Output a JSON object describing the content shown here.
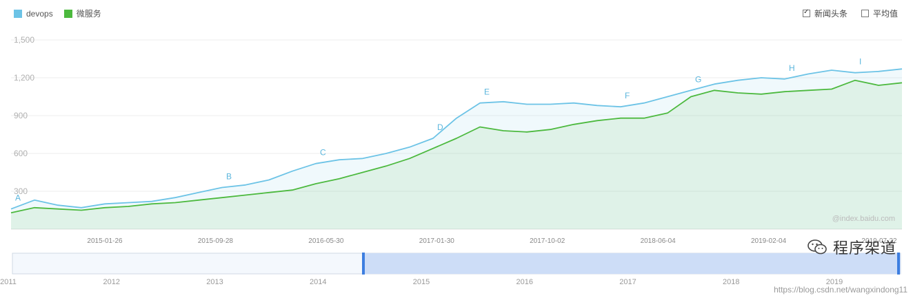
{
  "legend": {
    "items": [
      {
        "label": "devops",
        "color": "#6cc3e6"
      },
      {
        "label": "微服务",
        "color": "#4cb93e"
      }
    ]
  },
  "toggles": {
    "news": {
      "label": "新闻头条",
      "checked": true
    },
    "avg": {
      "label": "平均值",
      "checked": false
    }
  },
  "chart_data": {
    "type": "line",
    "x_labels": [
      "2015-01-26",
      "2015-09-28",
      "2016-05-30",
      "2017-01-30",
      "2017-10-02",
      "2018-06-04",
      "2019-02-04",
      "2019-07-22"
    ],
    "y_ticks": [
      "1,500",
      "1,200",
      "900",
      "600",
      "300"
    ],
    "ylim": [
      0,
      1500
    ],
    "series": [
      {
        "name": "devops",
        "color": "#6cc3e6",
        "values": [
          160,
          230,
          190,
          170,
          200,
          210,
          220,
          250,
          290,
          330,
          350,
          390,
          460,
          520,
          550,
          560,
          600,
          650,
          720,
          880,
          1000,
          1010,
          990,
          990,
          1000,
          980,
          970,
          1000,
          1050,
          1100,
          1150,
          1180,
          1200,
          1190,
          1230,
          1260,
          1240,
          1250,
          1270
        ]
      },
      {
        "name": "微服务",
        "color": "#4cb93e",
        "values": [
          130,
          170,
          160,
          150,
          170,
          180,
          200,
          210,
          230,
          250,
          270,
          290,
          310,
          360,
          400,
          450,
          500,
          560,
          640,
          720,
          810,
          780,
          770,
          790,
          830,
          860,
          880,
          880,
          920,
          1050,
          1100,
          1080,
          1070,
          1090,
          1100,
          1110,
          1180,
          1140,
          1160
        ]
      }
    ],
    "annotations": [
      "A",
      "B",
      "C",
      "D",
      "E",
      "F",
      "G",
      "H",
      "I"
    ],
    "source": "@index.baidu.com"
  },
  "overview": {
    "years": [
      "2011",
      "2012",
      "2013",
      "2014",
      "2015",
      "2016",
      "2017",
      "2018",
      "2019"
    ]
  },
  "watermark": {
    "brand": "程序架道",
    "url": "https://blog.csdn.net/wangxindong11"
  }
}
